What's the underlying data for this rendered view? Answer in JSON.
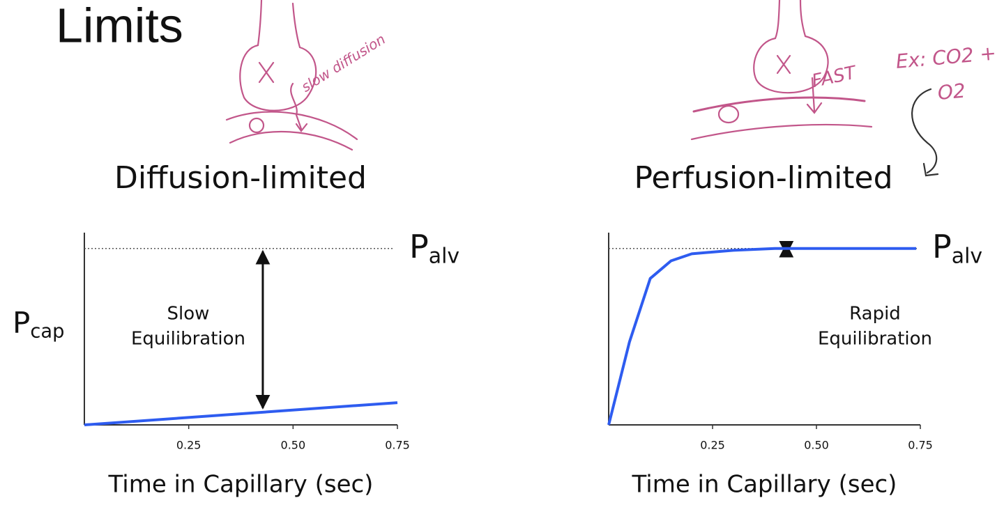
{
  "title": "Limits",
  "notes": [
    "slow diffusion",
    "FAST",
    "Ex: CO2 +",
    "O2"
  ],
  "chart_data": [
    {
      "type": "line",
      "title": "Diffusion-limited",
      "x_label": "Time in Capillary (sec)",
      "y_label": {
        "main": "P",
        "sub": "cap"
      },
      "reference": {
        "value": 1,
        "main": "P",
        "sub": "alv"
      },
      "annotation": [
        "Slow",
        "Equilibration"
      ],
      "x": [
        0,
        0.75
      ],
      "values": [
        0,
        0.126
      ],
      "color": "#2e5cf0",
      "xlim": [
        0,
        0.75
      ],
      "ylim": [
        0,
        1.09
      ],
      "xticks": [
        0.25,
        {
          "value": 0.5,
          "label": "0.50"
        },
        0.75
      ]
    },
    {
      "type": "line",
      "title": "Perfusion-limited",
      "x_label": "Time in Capillary (sec)",
      "reference": {
        "value": 1,
        "main": "P",
        "sub": "alv"
      },
      "annotation": [
        "Rapid",
        "Equilibration"
      ],
      "x": [
        0,
        0.05,
        0.1,
        0.15,
        0.2,
        0.3,
        0.4,
        0.5,
        0.6,
        0.74
      ],
      "values": [
        0,
        0.47,
        0.83,
        0.93,
        0.97,
        0.99,
        1,
        1,
        1,
        1
      ],
      "color": "#2e5cf0",
      "xlim": [
        0,
        0.75
      ],
      "ylim": [
        0,
        1.09
      ],
      "xticks": [
        0.25,
        {
          "value": 0.5,
          "label": "0.50"
        },
        0.75
      ]
    }
  ]
}
